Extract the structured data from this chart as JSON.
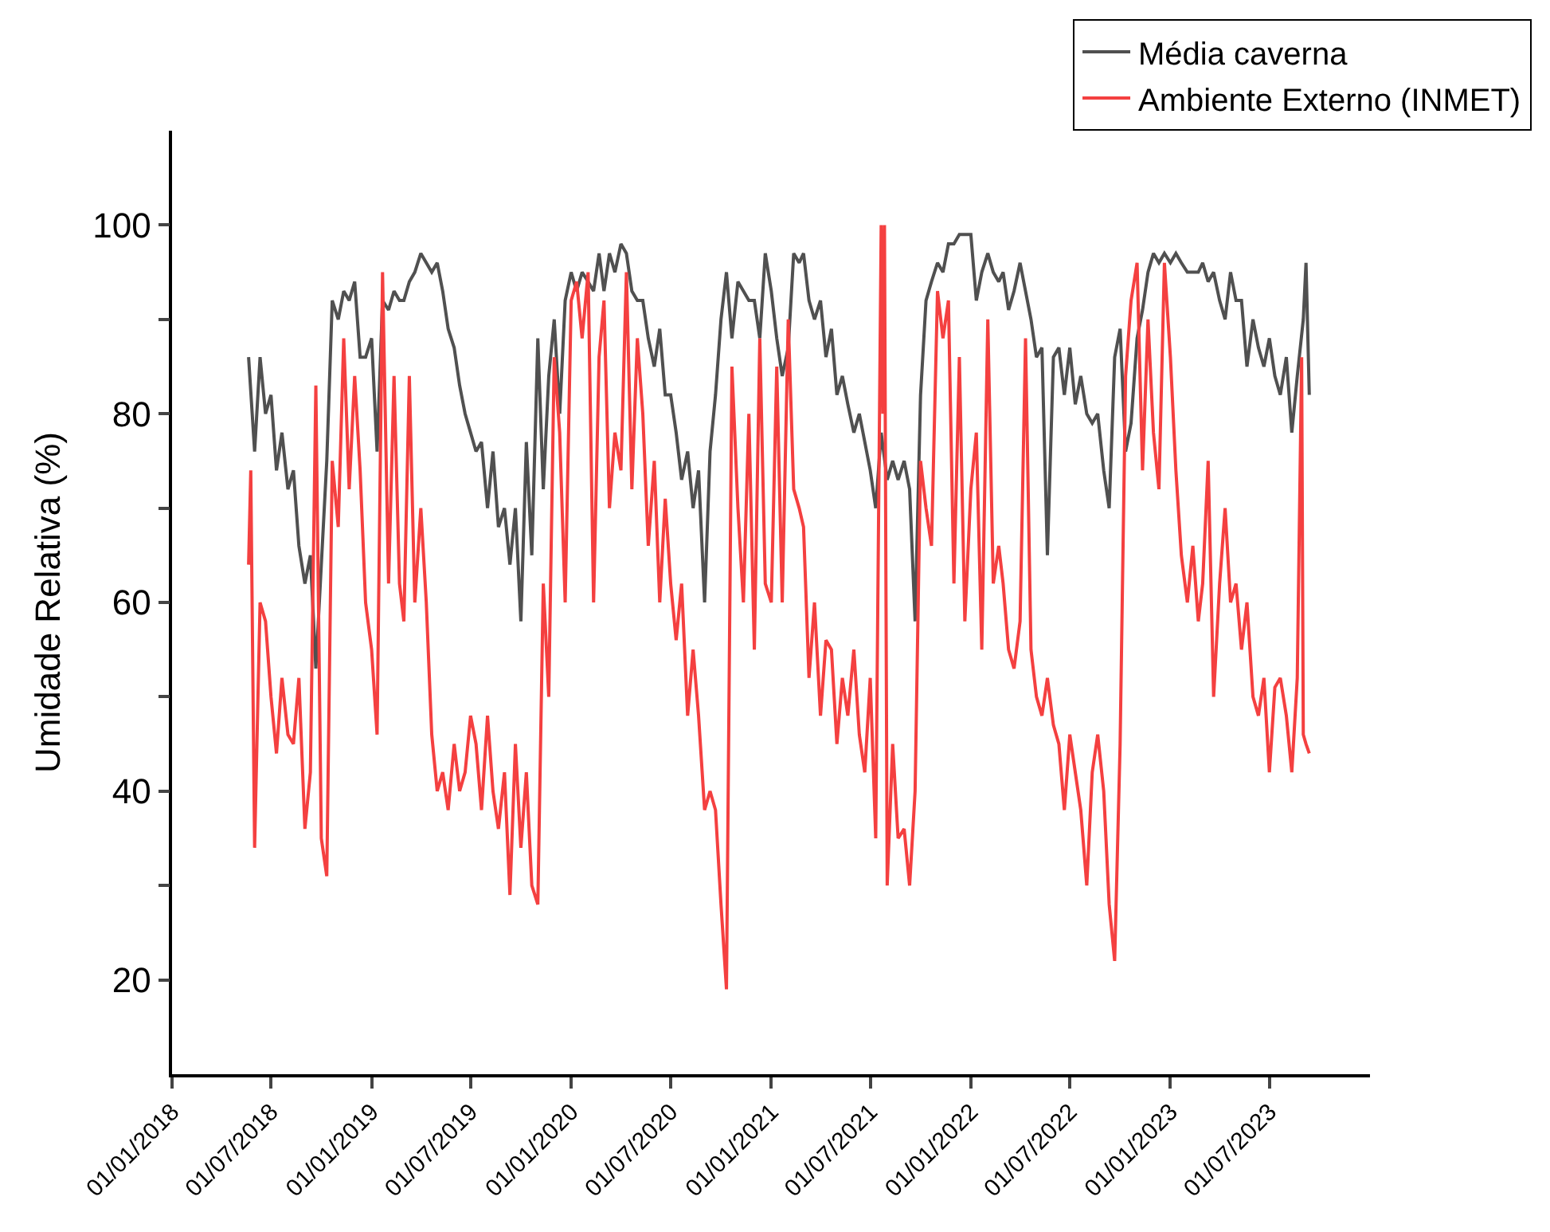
{
  "chart_data": {
    "type": "line",
    "ylabel": "Umidade Relativa (%)",
    "legend": "top right",
    "grid": false,
    "marker": "none",
    "line_style": "solid",
    "xlim": [
      "2018-01-01",
      "2024-01-01"
    ],
    "xticks": [
      {
        "value": "2018-01-01",
        "label": "01/01/2018"
      },
      {
        "value": "2018-07-01",
        "label": "01/07/2018"
      },
      {
        "value": "2019-01-01",
        "label": "01/01/2019"
      },
      {
        "value": "2019-07-01",
        "label": "01/07/2019"
      },
      {
        "value": "2020-01-01",
        "label": "01/01/2020"
      },
      {
        "value": "2020-07-01",
        "label": "01/07/2020"
      },
      {
        "value": "2021-01-01",
        "label": "01/01/2021"
      },
      {
        "value": "2021-07-01",
        "label": "01/07/2021"
      },
      {
        "value": "2022-01-01",
        "label": "01/01/2022"
      },
      {
        "value": "2022-07-01",
        "label": "01/07/2022"
      },
      {
        "value": "2023-01-01",
        "label": "01/01/2023"
      },
      {
        "value": "2023-07-01",
        "label": "01/07/2023"
      }
    ],
    "ylim": [
      10,
      110
    ],
    "yticks": [
      20,
      {
        "value": 30,
        "label": null
      },
      40,
      {
        "value": 50,
        "label": null
      },
      60,
      {
        "value": 70,
        "label": null
      },
      80,
      {
        "value": 90,
        "label": null
      },
      100
    ],
    "series": [
      {
        "name": "Média caverna",
        "color": "#505050",
        "x": [
          "2018-05-21",
          "2018-06-01",
          "2018-06-11",
          "2018-06-21",
          "2018-07-01",
          "2018-07-11",
          "2018-07-21",
          "2018-08-01",
          "2018-08-11",
          "2018-08-21",
          "2018-09-01",
          "2018-09-11",
          "2018-09-21",
          "2018-10-01",
          "2018-10-11",
          "2018-10-21",
          "2018-11-01",
          "2018-11-11",
          "2018-11-21",
          "2018-12-01",
          "2018-12-11",
          "2018-12-21",
          "2019-01-01",
          "2019-01-11",
          "2019-01-21",
          "2019-02-01",
          "2019-02-11",
          "2019-02-21",
          "2019-03-01",
          "2019-03-11",
          "2019-03-21",
          "2019-04-01",
          "2019-04-11",
          "2019-04-21",
          "2019-05-01",
          "2019-05-11",
          "2019-05-21",
          "2019-06-01",
          "2019-06-11",
          "2019-06-21",
          "2019-07-01",
          "2019-07-11",
          "2019-07-21",
          "2019-08-01",
          "2019-08-11",
          "2019-08-21",
          "2019-09-01",
          "2019-09-11",
          "2019-09-21",
          "2019-10-01",
          "2019-10-11",
          "2019-10-21",
          "2019-11-01",
          "2019-11-11",
          "2019-11-21",
          "2019-12-01",
          "2019-12-11",
          "2019-12-21",
          "2020-01-01",
          "2020-01-11",
          "2020-01-21",
          "2020-02-01",
          "2020-02-11",
          "2020-02-21",
          "2020-03-01",
          "2020-03-11",
          "2020-03-21",
          "2020-04-01",
          "2020-04-11",
          "2020-04-21",
          "2020-05-01",
          "2020-05-11",
          "2020-05-21",
          "2020-06-01",
          "2020-06-11",
          "2020-06-21",
          "2020-07-01",
          "2020-07-11",
          "2020-07-21",
          "2020-08-01",
          "2020-08-11",
          "2020-08-21",
          "2020-09-01",
          "2020-09-11",
          "2020-09-21",
          "2020-10-01",
          "2020-10-11",
          "2020-10-21",
          "2020-11-01",
          "2020-11-11",
          "2020-11-21",
          "2020-12-01",
          "2020-12-11",
          "2020-12-21",
          "2021-01-01",
          "2021-01-11",
          "2021-01-21",
          "2021-02-01",
          "2021-02-11",
          "2021-02-21",
          "2021-03-01",
          "2021-03-11",
          "2021-03-21",
          "2021-04-01",
          "2021-04-11",
          "2021-04-21",
          "2021-05-01",
          "2021-05-11",
          "2021-05-21",
          "2021-06-01",
          "2021-06-11",
          "2021-06-21",
          "2021-07-01",
          "2021-07-11",
          "2021-07-21",
          "2021-08-01",
          "2021-08-11",
          "2021-08-21",
          "2021-09-01",
          "2021-09-11",
          "2021-09-21",
          "2021-10-01",
          "2021-10-11",
          "2021-10-21",
          "2021-11-01",
          "2021-11-11",
          "2021-11-21",
          "2021-12-01",
          "2021-12-11",
          "2021-12-21",
          "2022-01-01",
          "2022-01-11",
          "2022-01-21",
          "2022-02-01",
          "2022-02-11",
          "2022-02-21",
          "2022-03-01",
          "2022-03-11",
          "2022-03-21",
          "2022-04-01",
          "2022-04-11",
          "2022-04-21",
          "2022-05-01",
          "2022-05-11",
          "2022-05-21",
          "2022-06-01",
          "2022-06-11",
          "2022-06-21",
          "2022-07-01",
          "2022-07-11",
          "2022-07-21",
          "2022-08-01",
          "2022-08-11",
          "2022-08-21",
          "2022-09-01",
          "2022-09-11",
          "2022-09-21",
          "2022-10-01",
          "2022-10-11",
          "2022-10-21",
          "2022-11-01",
          "2022-11-11",
          "2022-11-21",
          "2022-12-01",
          "2022-12-11",
          "2022-12-21",
          "2023-01-01",
          "2023-01-11",
          "2023-01-21",
          "2023-02-01",
          "2023-02-11",
          "2023-02-21",
          "2023-03-01",
          "2023-03-11",
          "2023-03-21",
          "2023-04-01",
          "2023-04-11",
          "2023-04-21",
          "2023-05-01",
          "2023-05-11",
          "2023-05-21",
          "2023-06-01",
          "2023-06-11",
          "2023-06-21",
          "2023-07-01",
          "2023-07-11",
          "2023-07-21",
          "2023-08-01",
          "2023-08-11",
          "2023-08-21",
          "2023-09-01",
          "2023-09-06",
          "2023-09-12"
        ],
        "values": [
          86,
          76,
          86,
          80,
          82,
          74,
          78,
          72,
          74,
          66,
          62,
          65,
          53,
          64,
          75,
          92,
          90,
          93,
          92,
          94,
          86,
          86,
          88,
          76,
          92,
          91,
          93,
          92,
          92,
          94,
          95,
          97,
          96,
          95,
          96,
          93,
          89,
          87,
          83,
          80,
          78,
          76,
          77,
          70,
          76,
          68,
          70,
          64,
          70,
          58,
          77,
          65,
          88,
          72,
          84,
          90,
          80,
          92,
          95,
          93,
          95,
          94,
          93,
          97,
          93,
          97,
          95,
          98,
          97,
          93,
          92,
          92,
          88,
          85,
          89,
          82,
          82,
          78,
          73,
          76,
          70,
          74,
          60,
          76,
          82,
          90,
          95,
          88,
          94,
          93,
          92,
          92,
          88,
          97,
          93,
          88,
          84,
          87,
          97,
          96,
          97,
          92,
          90,
          92,
          86,
          89,
          82,
          84,
          81,
          78,
          80,
          77,
          74,
          70,
          78,
          73,
          75,
          73,
          75,
          72,
          58,
          82,
          92,
          94,
          96,
          95,
          98,
          98,
          99,
          99,
          99,
          92,
          95,
          97,
          95,
          94,
          95,
          91,
          93,
          96,
          93,
          90,
          86,
          87,
          65,
          86,
          87,
          82,
          87,
          81,
          84,
          80,
          79,
          80,
          74,
          70,
          86,
          89,
          76,
          79,
          88,
          91,
          95,
          97,
          96,
          97,
          96,
          97,
          96,
          95,
          95,
          95,
          96,
          94,
          95,
          92,
          90,
          95,
          92,
          92,
          85,
          90,
          87,
          85,
          88,
          84,
          82,
          86,
          78,
          84,
          90,
          96,
          82
        ]
      },
      {
        "name": "Ambiente Externo (INMET)",
        "color": "#f44040",
        "x": [
          "2018-05-21",
          "2018-05-25",
          "2018-06-01",
          "2018-06-11",
          "2018-06-21",
          "2018-07-01",
          "2018-07-11",
          "2018-07-21",
          "2018-08-01",
          "2018-08-11",
          "2018-08-21",
          "2018-09-01",
          "2018-09-11",
          "2018-09-21",
          "2018-10-01",
          "2018-10-11",
          "2018-10-21",
          "2018-11-01",
          "2018-11-11",
          "2018-11-21",
          "2018-12-01",
          "2018-12-11",
          "2018-12-21",
          "2019-01-01",
          "2019-01-11",
          "2019-01-21",
          "2019-02-01",
          "2019-02-11",
          "2019-02-21",
          "2019-03-01",
          "2019-03-11",
          "2019-03-21",
          "2019-04-01",
          "2019-04-11",
          "2019-04-21",
          "2019-05-01",
          "2019-05-11",
          "2019-05-21",
          "2019-06-01",
          "2019-06-11",
          "2019-06-21",
          "2019-07-01",
          "2019-07-11",
          "2019-07-21",
          "2019-08-01",
          "2019-08-11",
          "2019-08-21",
          "2019-09-01",
          "2019-09-11",
          "2019-09-21",
          "2019-10-01",
          "2019-10-11",
          "2019-10-21",
          "2019-11-01",
          "2019-11-11",
          "2019-11-21",
          "2019-12-01",
          "2019-12-11",
          "2019-12-21",
          "2020-01-01",
          "2020-01-11",
          "2020-01-21",
          "2020-02-01",
          "2020-02-11",
          "2020-02-21",
          "2020-03-01",
          "2020-03-11",
          "2020-03-21",
          "2020-04-01",
          "2020-04-11",
          "2020-04-21",
          "2020-05-01",
          "2020-05-11",
          "2020-05-21",
          "2020-06-01",
          "2020-06-11",
          "2020-06-21",
          "2020-07-01",
          "2020-07-11",
          "2020-07-21",
          "2020-08-01",
          "2020-08-11",
          "2020-08-21",
          "2020-09-01",
          "2020-09-11",
          "2020-09-21",
          "2020-10-01",
          "2020-10-11",
          "2020-10-21",
          "2020-11-01",
          "2020-11-11",
          "2020-11-21",
          "2020-12-01",
          "2020-12-11",
          "2020-12-21",
          "2021-01-01",
          "2021-01-11",
          "2021-01-21",
          "2021-02-01",
          "2021-02-11",
          "2021-02-21",
          "2021-03-01",
          "2021-03-11",
          "2021-03-21",
          "2021-04-01",
          "2021-04-11",
          "2021-04-21",
          "2021-05-01",
          "2021-05-11",
          "2021-05-21",
          "2021-06-01",
          "2021-06-11",
          "2021-06-21",
          "2021-07-01",
          "2021-07-11",
          "2021-07-21",
          "2021-07-24",
          "2021-07-27",
          "2021-08-01",
          "2021-08-11",
          "2021-08-21",
          "2021-09-01",
          "2021-09-11",
          "2021-09-21",
          "2021-10-01",
          "2021-10-11",
          "2021-10-21",
          "2021-11-01",
          "2021-11-11",
          "2021-11-21",
          "2021-12-01",
          "2021-12-11",
          "2021-12-21",
          "2022-01-01",
          "2022-01-11",
          "2022-01-21",
          "2022-02-01",
          "2022-02-11",
          "2022-02-21",
          "2022-03-01",
          "2022-03-11",
          "2022-03-21",
          "2022-04-01",
          "2022-04-11",
          "2022-04-21",
          "2022-05-01",
          "2022-05-11",
          "2022-05-21",
          "2022-06-01",
          "2022-06-11",
          "2022-06-21",
          "2022-07-01",
          "2022-07-11",
          "2022-07-21",
          "2022-08-01",
          "2022-08-11",
          "2022-08-21",
          "2022-09-01",
          "2022-09-11",
          "2022-09-21",
          "2022-10-01",
          "2022-10-11",
          "2022-10-21",
          "2022-11-01",
          "2022-11-11",
          "2022-11-21",
          "2022-12-01",
          "2022-12-11",
          "2022-12-21",
          "2023-01-01",
          "2023-01-11",
          "2023-01-21",
          "2023-02-01",
          "2023-02-11",
          "2023-02-21",
          "2023-03-01",
          "2023-03-11",
          "2023-03-21",
          "2023-04-01",
          "2023-04-11",
          "2023-04-21",
          "2023-05-01",
          "2023-05-11",
          "2023-05-21",
          "2023-06-01",
          "2023-06-11",
          "2023-06-21",
          "2023-07-01",
          "2023-07-11",
          "2023-07-21",
          "2023-08-01",
          "2023-08-11",
          "2023-08-21",
          "2023-08-29",
          "2023-09-01",
          "2023-09-06",
          "2023-09-12"
        ],
        "values": [
          64,
          74,
          34,
          60,
          58,
          50,
          44,
          52,
          46,
          45,
          52,
          36,
          42,
          83,
          35,
          31,
          75,
          68,
          88,
          72,
          84,
          74,
          60,
          55,
          46,
          95,
          62,
          84,
          62,
          58,
          84,
          60,
          70,
          60,
          46,
          40,
          42,
          38,
          45,
          40,
          42,
          48,
          45,
          38,
          48,
          40,
          36,
          42,
          29,
          45,
          34,
          42,
          30,
          28,
          62,
          50,
          86,
          78,
          60,
          92,
          94,
          88,
          95,
          60,
          86,
          92,
          70,
          78,
          74,
          95,
          72,
          88,
          80,
          66,
          75,
          60,
          71,
          62,
          56,
          62,
          48,
          55,
          48,
          38,
          40,
          38,
          28,
          19,
          85,
          70,
          60,
          80,
          55,
          88,
          62,
          60,
          85,
          60,
          90,
          72,
          70,
          68,
          52,
          60,
          48,
          56,
          55,
          45,
          52,
          48,
          55,
          46,
          42,
          52,
          35,
          100,
          80,
          100,
          30,
          45,
          35,
          36,
          30,
          40,
          75,
          70,
          66,
          93,
          88,
          92,
          62,
          86,
          58,
          72,
          78,
          55,
          90,
          62,
          66,
          62,
          55,
          53,
          58,
          88,
          55,
          50,
          48,
          52,
          47,
          45,
          38,
          46,
          42,
          38,
          30,
          42,
          46,
          40,
          28,
          22,
          45,
          84,
          92,
          96,
          74,
          90,
          78,
          72,
          96,
          86,
          74,
          65,
          60,
          66,
          58,
          62,
          75,
          50,
          62,
          70,
          60,
          62,
          55,
          60,
          50,
          48,
          52,
          42,
          51,
          52,
          48,
          42,
          52,
          86,
          46,
          45,
          44
        ]
      }
    ]
  }
}
